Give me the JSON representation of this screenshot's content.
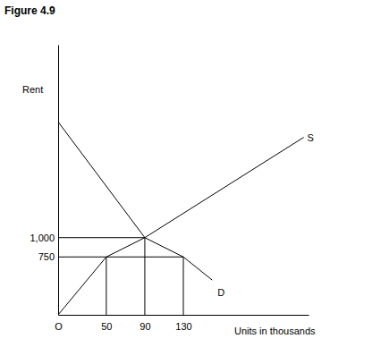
{
  "chart_data": {
    "type": "line",
    "title": "Figure 4.9",
    "x_label": "Units in thousands",
    "y_label": "Rent",
    "xlim": [
      0,
      260
    ],
    "ylim": [
      0,
      3500
    ],
    "xticks": [
      {
        "value": 0,
        "label": "O"
      },
      50,
      90,
      130
    ],
    "yticks": [
      750,
      {
        "value": 1000,
        "label": "1,000"
      }
    ],
    "grid": false,
    "series": [
      {
        "name": "S",
        "color": "#000000",
        "x": [
          0,
          50,
          90,
          255
        ],
        "values": [
          0,
          750,
          1000,
          2300
        ]
      },
      {
        "name": "D",
        "color": "#000000",
        "x": [
          0,
          90,
          130,
          160
        ],
        "values": [
          2500,
          1000,
          750,
          450
        ]
      }
    ],
    "guides": [
      {
        "x": [
          0,
          90,
          90
        ],
        "values": [
          1000,
          1000,
          0
        ]
      },
      {
        "x": [
          0,
          130,
          130
        ],
        "values": [
          750,
          750,
          0
        ]
      },
      {
        "x": [
          50,
          50
        ],
        "values": [
          750,
          0
        ]
      }
    ]
  }
}
